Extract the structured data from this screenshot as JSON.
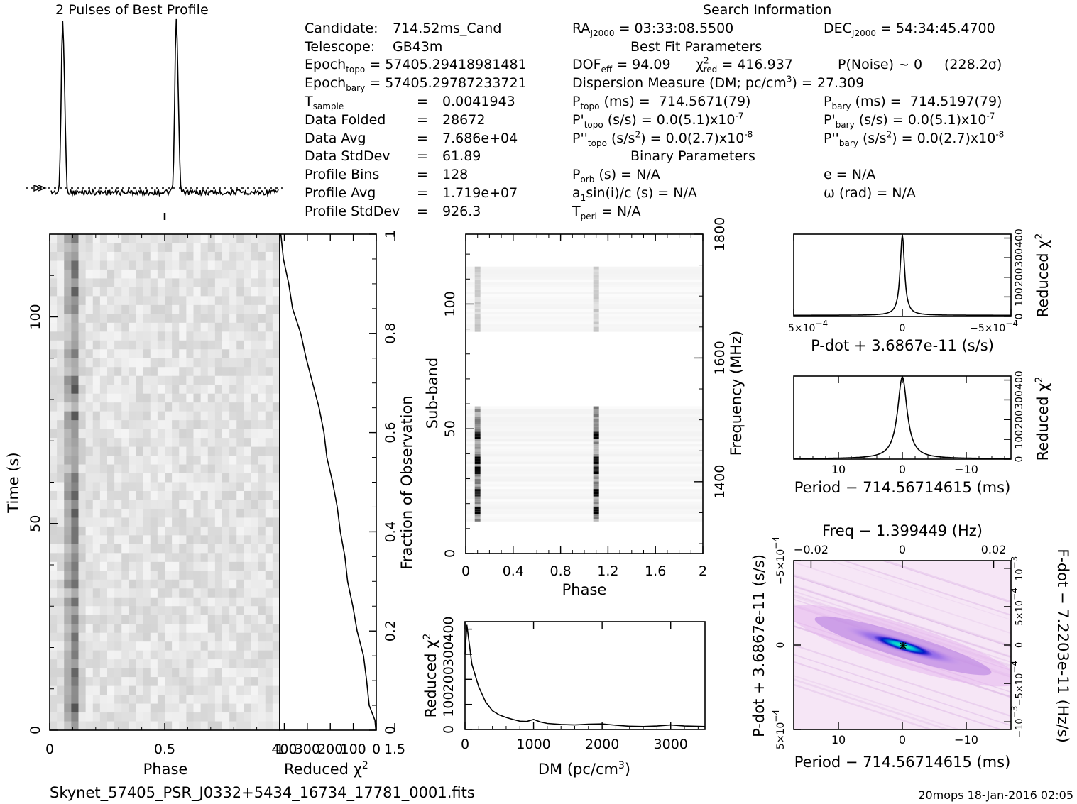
{
  "header": {
    "profile_title": "2 Pulses of Best Profile",
    "search_title": "Search Information",
    "best_fit_title": "Best Fit Parameters",
    "binary_title": "Binary Parameters"
  },
  "candidate_info": {
    "candidate_label": "Candidate:",
    "candidate_value": "714.52ms_Cand",
    "telescope_label": "Telescope:",
    "telescope_value": "GB43m",
    "epoch_topo_label": "Epoch",
    "epoch_topo_sub": "topo",
    "epoch_topo_value": "= 57405.29418981481",
    "epoch_bary_label": "Epoch",
    "epoch_bary_sub": "bary",
    "epoch_bary_value": "= 57405.29787233721",
    "tsample_label": "T",
    "tsample_sub": "sample",
    "tsample_value": "0.0041943",
    "folded_label": "Data Folded",
    "folded_value": "28672",
    "avg_label": "Data Avg",
    "avg_value": "7.686e+04",
    "stddev_label": "Data StdDev",
    "stddev_value": "61.89",
    "bins_label": "Profile Bins",
    "bins_value": "128",
    "pavg_label": "Profile Avg",
    "pavg_value": "1.719e+07",
    "pstd_label": "Profile StdDev",
    "pstd_value": "926.3",
    "eq": "="
  },
  "search_info": {
    "ra_label": "RA",
    "ra_sub": "J2000",
    "ra_value": "= 03:33:08.5500",
    "dec_label": "DEC",
    "dec_sub": "J2000",
    "dec_value": "= 54:34:45.4700",
    "dof_label": "DOF",
    "dof_sub": "eff",
    "dof_value": "= 94.09",
    "chi_label": "χ",
    "chi_sup": "2",
    "chi_sub": "red",
    "chi_value": "= 416.937",
    "pnoise": "P(Noise) ~ 0",
    "sigma": "(228.2σ)",
    "dm_text": "Dispersion Measure (DM; pc/cm",
    "dm_sup": "3",
    "dm_value": ") = 27.309",
    "ptopo_label": "P",
    "ptopo_sub": "topo",
    "ptopo_value": "(ms) =  714.5671(79)",
    "pbary_label": "P",
    "pbary_sub": "bary",
    "pbary_value": "(ms) =  714.5197(79)",
    "pdtopo_label": "P'",
    "pdtopo_sub": "topo",
    "pdtopo_value": "(s/s) = 0.0(5.1)x10",
    "pdtopo_exp": "-7",
    "pdbary_label": "P'",
    "pdbary_sub": "bary",
    "pdbary_value": "(s/s) = 0.0(5.1)x10",
    "pdbary_exp": "-7",
    "pddtopo_label": "P''",
    "pddtopo_sub": "topo",
    "pddtopo_value": "(s/s",
    "pddtopo_unit_sup": "2",
    "pddtopo_value2": ") = 0.0(2.7)x10",
    "pddtopo_exp": "-8",
    "pddbary_label": "P''",
    "pddbary_sub": "bary",
    "pddbary_value": "(s/s",
    "pddbary_unit_sup": "2",
    "pddbary_value2": ") = 0.0(2.7)x10",
    "pddbary_exp": "-8",
    "porb_label": "P",
    "porb_sub": "orb",
    "porb_value": "(s) = N/A",
    "e_value": "e = N/A",
    "a1_label": "a",
    "a1_sub": "1",
    "a1_value": "sin(i)/c (s) = N/A",
    "omega_value": "ω (rad) = N/A",
    "tperi_label": "T",
    "tperi_sub": "peri",
    "tperi_value": "= N/A"
  },
  "footer": {
    "filename": "Skynet_57405_PSR_J0332+5434_16734_17781_0001.fits",
    "stamp": "20mops  18-Jan-2016 02:05"
  },
  "chart_data": [
    {
      "id": "profile",
      "type": "line",
      "title": "2 Pulses of Best Profile",
      "x_range": [
        0,
        2
      ],
      "pulse_phase": 0.1,
      "pulse_width": 0.012,
      "notes": "Two narrow pulses per 2 rotations; dotted baseline at profile average"
    },
    {
      "id": "time_phase",
      "type": "heatmap",
      "xlabel": "Phase",
      "ylabel": "Time (s)",
      "x_ticks": [
        "0",
        "0.5",
        "1",
        "1.5"
      ],
      "x_tick_values": [
        0,
        0.5,
        1,
        1.5
      ],
      "y_ticks": [
        "0",
        "50",
        "100"
      ],
      "y_tick_values": [
        0,
        50,
        100
      ],
      "x_range": [
        0,
        2
      ],
      "y_range": [
        0,
        120
      ],
      "pulse_phases": [
        0.1,
        1.1
      ]
    },
    {
      "id": "time_chi2",
      "type": "line",
      "xlabel": "Reduced",
      "xlabel_sym": "χ",
      "xlabel_sup": "2",
      "ylabel": "Fraction of Observation",
      "x_ticks": [
        "400",
        "300",
        "200",
        "100",
        "0"
      ],
      "x_tick_values": [
        400,
        300,
        200,
        100,
        0
      ],
      "y_ticks": [
        "0",
        "0.2",
        "0.4",
        "0.6",
        "0.8",
        "1"
      ],
      "y_tick_values": [
        0,
        0.2,
        0.4,
        0.6,
        0.8,
        1
      ],
      "x_range": [
        420,
        0
      ],
      "y_range": [
        0,
        1
      ],
      "fraction": [
        0,
        0.02,
        0.05,
        0.1,
        0.15,
        0.2,
        0.25,
        0.3,
        0.35,
        0.4,
        0.45,
        0.5,
        0.55,
        0.6,
        0.65,
        0.7,
        0.75,
        0.8,
        0.85,
        0.9,
        0.95,
        1
      ],
      "chi2": [
        2,
        10,
        25,
        40,
        60,
        80,
        100,
        120,
        140,
        160,
        175,
        195,
        215,
        230,
        250,
        275,
        300,
        330,
        360,
        385,
        405,
        420
      ]
    },
    {
      "id": "subband_phase",
      "type": "heatmap",
      "xlabel": "Phase",
      "ylabel": "Sub-band",
      "ylabel_right": "Frequency (MHz)",
      "x_ticks": [
        "0",
        "0.4",
        "0.8",
        "1.2",
        "1.6",
        "2"
      ],
      "x_tick_values": [
        0,
        0.4,
        0.8,
        1.2,
        1.6,
        2
      ],
      "y_ticks": [
        "0",
        "50",
        "100"
      ],
      "y_tick_values": [
        0,
        50,
        100
      ],
      "y_right_ticks": [
        "1400",
        "1600",
        "1800"
      ],
      "y_right_tick_values": [
        1400,
        1600,
        1800
      ],
      "x_range": [
        0,
        2
      ],
      "y_range": [
        0,
        128
      ],
      "freq_range": [
        1284,
        1800
      ],
      "band_low": [
        13,
        59
      ],
      "band_high": [
        89,
        115
      ],
      "bright_subbands": [
        17,
        24,
        33,
        37,
        47
      ]
    },
    {
      "id": "dm_chi2",
      "type": "line",
      "xlabel": "DM (pc/cm",
      "xlabel_sup": "3",
      "xlabel_end": ")",
      "ylabel": "Reduced",
      "ylabel_sym": "χ",
      "ylabel_sup": "2",
      "x_ticks": [
        "0",
        "1000",
        "2000",
        "3000"
      ],
      "x_tick_values": [
        0,
        1000,
        2000,
        3000
      ],
      "y_ticks": [
        "0",
        "100",
        "200",
        "300",
        "400"
      ],
      "y_tick_values": [
        0,
        100,
        200,
        300,
        400
      ],
      "x_range": [
        0,
        3500
      ],
      "y_range": [
        0,
        430
      ],
      "dm": [
        0,
        27,
        100,
        200,
        300,
        400,
        500,
        600,
        700,
        800,
        900,
        1000,
        1100,
        1200,
        1400,
        1600,
        1800,
        2000,
        2200,
        2400,
        2600,
        2800,
        3000,
        3200,
        3500
      ],
      "chi2": [
        300,
        417,
        260,
        170,
        110,
        75,
        58,
        48,
        40,
        33,
        32,
        40,
        30,
        24,
        20,
        18,
        21,
        22,
        17,
        13,
        12,
        14,
        18,
        14,
        12
      ]
    },
    {
      "id": "pdot_chi2",
      "type": "line",
      "xlabel": "P-dot + 3.6867e-11 (s/s)",
      "ylabel": "Reduced",
      "ylabel_sym": "χ",
      "ylabel_sup": "2",
      "x_range": [
        0.0005,
        -0.0005
      ],
      "y_range": [
        0,
        420
      ],
      "x_ticks": [
        "5×10",
        "0",
        "−5×10"
      ],
      "x_tick_exp": [
        "−4",
        "",
        "−4"
      ],
      "x_tick_values": [
        0.0005,
        0,
        -0.0005
      ],
      "y_ticks": [
        "0",
        "100",
        "200",
        "300",
        "400"
      ],
      "y_tick_values": [
        0,
        100,
        200,
        300,
        400
      ],
      "peak": 417,
      "half_width": 1.2e-05,
      "floor": 6
    },
    {
      "id": "period_chi2",
      "type": "line",
      "xlabel": "Period − 714.56714615 (ms)",
      "ylabel": "Reduced",
      "ylabel_sym": "χ",
      "ylabel_sup": "2",
      "x_range": [
        17,
        -17
      ],
      "y_range": [
        0,
        420
      ],
      "x_ticks": [
        "10",
        "0",
        "−10"
      ],
      "x_tick_values": [
        10,
        0,
        -10
      ],
      "y_ticks": [
        "0",
        "100",
        "200",
        "300",
        "400"
      ],
      "y_tick_values": [
        0,
        100,
        200,
        300,
        400
      ],
      "peak": 417,
      "half_width": 0.9,
      "floor": 2
    },
    {
      "id": "period_pdot",
      "type": "heatmap",
      "xlabel": "Period − 714.56714615 (ms)",
      "ylabel": "P-dot + 3.6867e-11 (s/s)",
      "top_label": "Freq − 1.399449 (Hz)",
      "right_label": "F-dot − 7.2203e-11 (Hz/s)",
      "x_range": [
        17,
        -17
      ],
      "y_range": [
        0.0005,
        -0.0005
      ],
      "x_ticks": [
        "10",
        "0",
        "−10"
      ],
      "x_tick_values": [
        10,
        0,
        -10
      ],
      "top_ticks": [
        "−0.02",
        "0",
        "0.02"
      ],
      "top_tick_values": [
        -0.02,
        0,
        0.02
      ],
      "y_ticks": [
        "5×10",
        "0",
        "−5×10"
      ],
      "y_tick_exp": [
        "−4",
        "",
        "−4"
      ],
      "y_tick_values": [
        0.0005,
        0,
        -0.0005
      ],
      "right_ticks": [
        "−10",
        "−5×10",
        "0",
        "5×10",
        "10"
      ],
      "right_tick_exp": [
        "−3",
        "−4",
        "",
        "−4",
        "−3"
      ],
      "right_tick_values": [
        -0.001,
        -0.0005,
        0,
        0.0005,
        0.001
      ],
      "best_marker": [
        0,
        0
      ]
    }
  ]
}
